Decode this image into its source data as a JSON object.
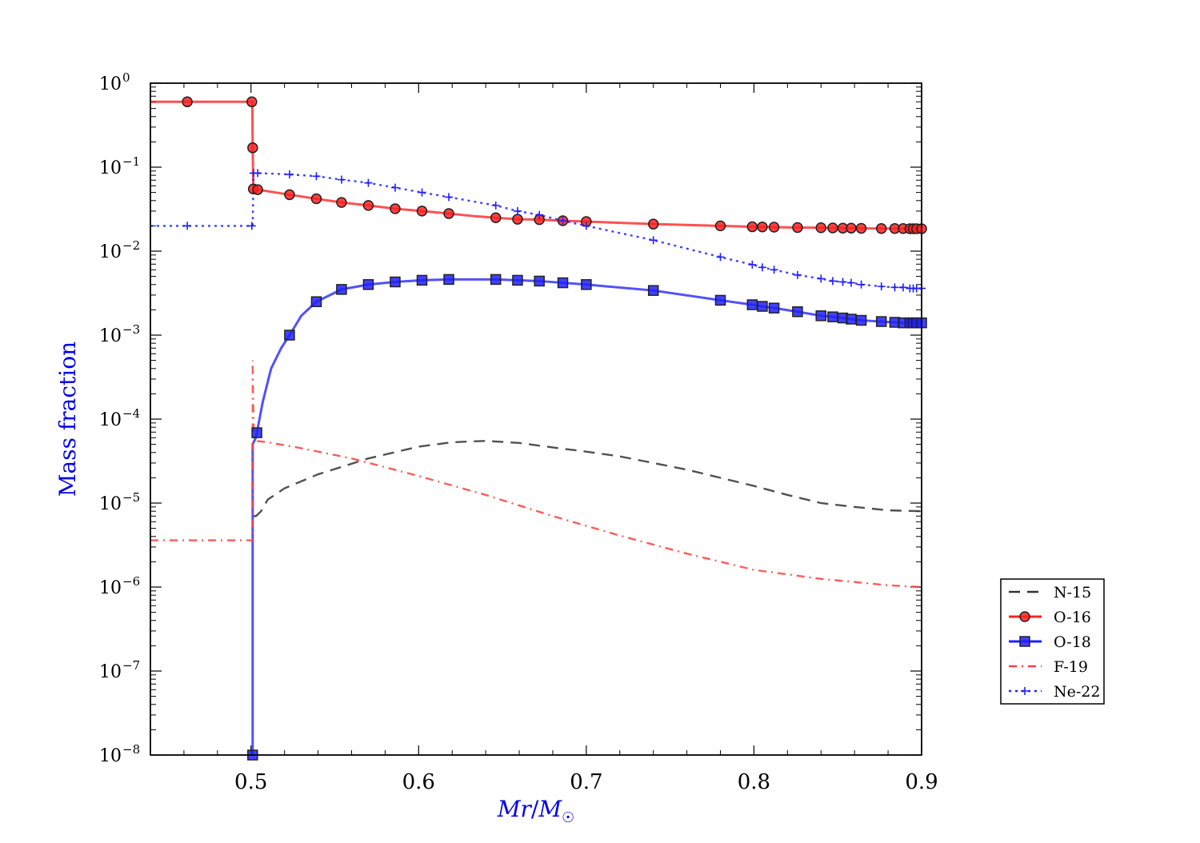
{
  "chart_data": {
    "type": "line",
    "title": "",
    "xlabel_parts": {
      "main": "Mr",
      "sep": "/",
      "m": "M",
      "sub": "☉"
    },
    "ylabel": "Mass fraction",
    "x_scale": "linear",
    "y_scale": "log",
    "xlim": [
      0.44,
      0.9
    ],
    "ylim": [
      1e-08,
      1
    ],
    "x_ticks": [
      0.5,
      0.6,
      0.7,
      0.8,
      0.9
    ],
    "x_tick_labels": [
      "0.5",
      "0.6",
      "0.7",
      "0.8",
      "0.9"
    ],
    "y_ticks": [
      1e-08,
      1e-07,
      1e-06,
      1e-05,
      0.0001,
      0.001,
      0.01,
      0.1,
      1
    ],
    "y_tick_labels": [
      {
        "base": "10",
        "exp": "−8"
      },
      {
        "base": "10",
        "exp": "−7"
      },
      {
        "base": "10",
        "exp": "−6"
      },
      {
        "base": "10",
        "exp": "−5"
      },
      {
        "base": "10",
        "exp": "−4"
      },
      {
        "base": "10",
        "exp": "−3"
      },
      {
        "base": "10",
        "exp": "−2"
      },
      {
        "base": "10",
        "exp": "−1"
      },
      {
        "base": "10",
        "exp": "0"
      }
    ],
    "grid": false,
    "legend_position": "outside-right",
    "colors": {
      "label": "#0000ee",
      "axis": "#000000"
    },
    "series": [
      {
        "name": "N-15",
        "color": "#333333",
        "dash": "14 9",
        "marker": "none",
        "x": [
          0.5016,
          0.503,
          0.506,
          0.51,
          0.52,
          0.54,
          0.57,
          0.6,
          0.62,
          0.64,
          0.66,
          0.68,
          0.7,
          0.72,
          0.74,
          0.76,
          0.78,
          0.8,
          0.82,
          0.84,
          0.86,
          0.88,
          0.9
        ],
        "y": [
          7e-06,
          7e-06,
          8e-06,
          1.1e-05,
          1.5e-05,
          2.2e-05,
          3.4e-05,
          4.7e-05,
          5.3e-05,
          5.5e-05,
          5.2e-05,
          4.6e-05,
          4.1e-05,
          3.6e-05,
          3e-05,
          2.5e-05,
          2e-05,
          1.6e-05,
          1.25e-05,
          1e-05,
          9e-06,
          8.2e-06,
          8e-06
        ]
      },
      {
        "name": "O-16",
        "color": "#ff2020",
        "dash": "",
        "marker": "circle",
        "x": [
          0.44,
          0.462,
          0.5,
          0.5005,
          0.5008,
          0.501,
          0.5014,
          0.504,
          0.523,
          0.539,
          0.554,
          0.57,
          0.586,
          0.602,
          0.618,
          0.634,
          0.646,
          0.659,
          0.672,
          0.686,
          0.7,
          0.74,
          0.78,
          0.799,
          0.805,
          0.812,
          0.826,
          0.84,
          0.847,
          0.853,
          0.858,
          0.864,
          0.876,
          0.884,
          0.889,
          0.893,
          0.895,
          0.897,
          0.9
        ],
        "y": [
          0.6,
          0.6,
          0.6,
          0.6,
          0.6,
          0.17,
          0.055,
          0.054,
          0.047,
          0.042,
          0.038,
          0.035,
          0.032,
          0.03,
          0.028,
          0.026,
          0.025,
          0.024,
          0.0237,
          0.023,
          0.0225,
          0.021,
          0.02,
          0.0195,
          0.0194,
          0.0193,
          0.0191,
          0.019,
          0.0189,
          0.0188,
          0.0188,
          0.0187,
          0.0186,
          0.0186,
          0.0186,
          0.0185,
          0.0185,
          0.0185,
          0.0185
        ],
        "markers": [
          0.462,
          0.5005,
          0.501,
          0.5014,
          0.504,
          0.523,
          0.539,
          0.554,
          0.57,
          0.586,
          0.602,
          0.618,
          0.646,
          0.659,
          0.672,
          0.686,
          0.7,
          0.74,
          0.78,
          0.799,
          0.805,
          0.812,
          0.826,
          0.84,
          0.847,
          0.853,
          0.858,
          0.864,
          0.876,
          0.884,
          0.889,
          0.893,
          0.895,
          0.897,
          0.9
        ]
      },
      {
        "name": "O-18",
        "color": "#2020ff",
        "dash": "",
        "marker": "square",
        "x": [
          0.5005,
          0.501,
          0.501,
          0.503,
          0.507,
          0.512,
          0.518,
          0.523,
          0.53,
          0.539,
          0.554,
          0.57,
          0.586,
          0.602,
          0.618,
          0.646,
          0.659,
          0.672,
          0.686,
          0.7,
          0.74,
          0.78,
          0.799,
          0.805,
          0.812,
          0.826,
          0.84,
          0.847,
          0.853,
          0.858,
          0.864,
          0.876,
          0.884,
          0.889,
          0.893,
          0.895,
          0.897,
          0.9
        ],
        "y": [
          1e-08,
          1e-08,
          5e-05,
          6.1e-05,
          0.00016,
          0.0004,
          0.0007,
          0.001,
          0.0017,
          0.0025,
          0.0035,
          0.004,
          0.0043,
          0.0045,
          0.0046,
          0.0046,
          0.0045,
          0.0044,
          0.0042,
          0.004,
          0.0034,
          0.0026,
          0.0023,
          0.0022,
          0.0021,
          0.0019,
          0.0017,
          0.00165,
          0.0016,
          0.00155,
          0.0015,
          0.00145,
          0.00142,
          0.0014,
          0.0014,
          0.0014,
          0.0014,
          0.0014
        ],
        "markers": [
          0.501,
          0.5035,
          0.523,
          0.539,
          0.554,
          0.57,
          0.586,
          0.602,
          0.618,
          0.646,
          0.659,
          0.672,
          0.686,
          0.7,
          0.74,
          0.78,
          0.799,
          0.805,
          0.812,
          0.826,
          0.84,
          0.847,
          0.853,
          0.858,
          0.864,
          0.876,
          0.884,
          0.889,
          0.893,
          0.895,
          0.897,
          0.9
        ]
      },
      {
        "name": "F-19",
        "color": "#ff4040",
        "dash": "10 6 2 6",
        "marker": "none",
        "x": [
          0.44,
          0.5,
          0.501,
          0.501,
          0.5012,
          0.5015,
          0.5018,
          0.5025,
          0.51,
          0.53,
          0.56,
          0.6,
          0.64,
          0.68,
          0.72,
          0.76,
          0.8,
          0.84,
          0.86,
          0.88,
          0.9
        ],
        "y": [
          3.6e-06,
          3.6e-06,
          3.6e-06,
          0.0005,
          0.0002,
          0.0001,
          6e-05,
          5.5e-05,
          5.3e-05,
          4.5e-05,
          3.4e-05,
          2.1e-05,
          1.25e-05,
          7e-06,
          4.1e-06,
          2.5e-06,
          1.6e-06,
          1.25e-06,
          1.15e-06,
          1.05e-06,
          1e-06
        ]
      },
      {
        "name": "Ne-22",
        "color": "#2020ff",
        "dash": "3 5",
        "marker": "plus",
        "x": [
          0.44,
          0.462,
          0.5,
          0.5005,
          0.501,
          0.5015,
          0.504,
          0.523,
          0.539,
          0.554,
          0.57,
          0.586,
          0.602,
          0.618,
          0.646,
          0.659,
          0.672,
          0.686,
          0.7,
          0.74,
          0.78,
          0.799,
          0.805,
          0.812,
          0.826,
          0.84,
          0.847,
          0.853,
          0.858,
          0.864,
          0.876,
          0.884,
          0.889,
          0.893,
          0.895,
          0.897,
          0.9
        ],
        "y": [
          0.02,
          0.02,
          0.02,
          0.02,
          0.02,
          0.085,
          0.085,
          0.082,
          0.078,
          0.071,
          0.065,
          0.057,
          0.05,
          0.044,
          0.035,
          0.03,
          0.027,
          0.023,
          0.02,
          0.0135,
          0.0085,
          0.0069,
          0.0064,
          0.006,
          0.0052,
          0.0047,
          0.0044,
          0.0043,
          0.0042,
          0.004,
          0.0038,
          0.0037,
          0.0037,
          0.0036,
          0.0036,
          0.0036,
          0.0036
        ],
        "markers": [
          0.462,
          0.5005,
          0.5015,
          0.504,
          0.523,
          0.539,
          0.554,
          0.57,
          0.586,
          0.602,
          0.618,
          0.646,
          0.659,
          0.672,
          0.686,
          0.7,
          0.74,
          0.78,
          0.799,
          0.805,
          0.812,
          0.826,
          0.84,
          0.847,
          0.853,
          0.858,
          0.864,
          0.876,
          0.884,
          0.889,
          0.893,
          0.895,
          0.897,
          0.9
        ]
      }
    ]
  }
}
